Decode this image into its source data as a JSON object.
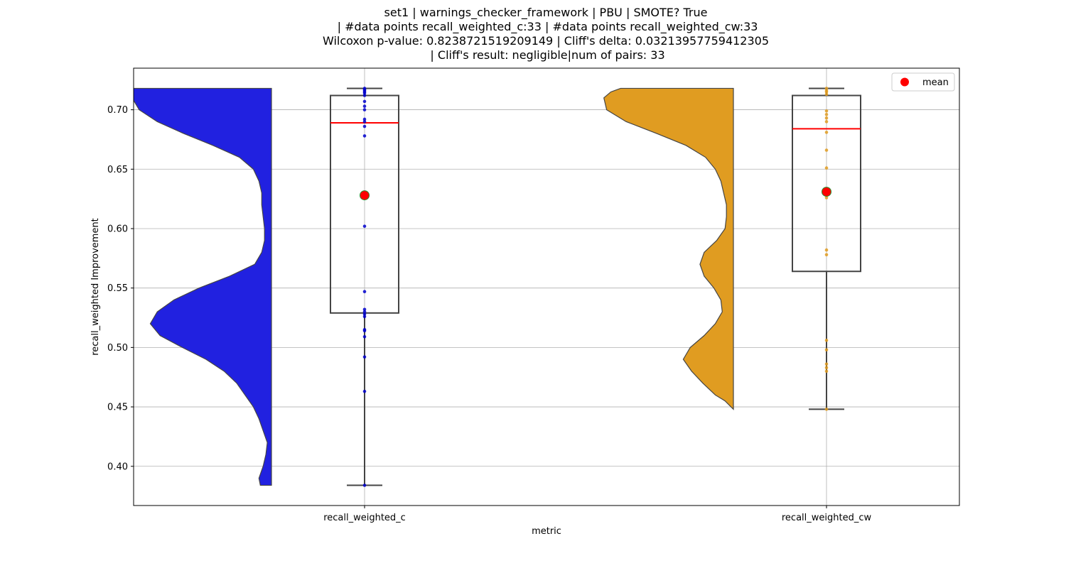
{
  "chart_data": {
    "type": "violin+box",
    "title_lines": [
      "set1 | warnings_checker_framework | PBU | SMOTE? True",
      " | #data points recall_weighted_c:33 | #data points recall_weighted_cw:33",
      "Wilcoxon p-value: 0.8238721519209149 | Cliff's delta: 0.03213957759412305",
      " | Cliff's result: negligible|num of pairs: 33"
    ],
    "xlabel": "metric",
    "ylabel": "recall_weighted Improvement",
    "ylim": [
      0.367,
      0.735
    ],
    "yticks": [
      0.4,
      0.45,
      0.5,
      0.55,
      0.6,
      0.65,
      0.7
    ],
    "ytick_labels": [
      "0.40",
      "0.45",
      "0.50",
      "0.55",
      "0.60",
      "0.65",
      "0.70"
    ],
    "categories": [
      "recall_weighted_c",
      "recall_weighted_cw"
    ],
    "grid": true,
    "legend": {
      "position": "top-right",
      "entries": [
        {
          "label": "mean",
          "color": "#ff0000"
        }
      ]
    },
    "series": [
      {
        "category": "recall_weighted_c",
        "violin_color": "#2121e0",
        "point_color": "#0000cc",
        "violin_side": "left",
        "violin_width": [
          [
            0.384,
            0.08
          ],
          [
            0.39,
            0.09
          ],
          [
            0.4,
            0.06
          ],
          [
            0.41,
            0.04
          ],
          [
            0.42,
            0.03
          ],
          [
            0.43,
            0.06
          ],
          [
            0.44,
            0.09
          ],
          [
            0.45,
            0.13
          ],
          [
            0.46,
            0.19
          ],
          [
            0.47,
            0.25
          ],
          [
            0.48,
            0.34
          ],
          [
            0.49,
            0.47
          ],
          [
            0.5,
            0.64
          ],
          [
            0.51,
            0.8
          ],
          [
            0.52,
            0.87
          ],
          [
            0.53,
            0.82
          ],
          [
            0.54,
            0.7
          ],
          [
            0.55,
            0.52
          ],
          [
            0.56,
            0.3
          ],
          [
            0.57,
            0.12
          ],
          [
            0.58,
            0.07
          ],
          [
            0.59,
            0.05
          ],
          [
            0.6,
            0.05
          ],
          [
            0.61,
            0.06
          ],
          [
            0.62,
            0.07
          ],
          [
            0.63,
            0.07
          ],
          [
            0.64,
            0.09
          ],
          [
            0.65,
            0.13
          ],
          [
            0.66,
            0.23
          ],
          [
            0.67,
            0.42
          ],
          [
            0.68,
            0.63
          ],
          [
            0.69,
            0.82
          ],
          [
            0.7,
            0.95
          ],
          [
            0.71,
            1.0
          ],
          [
            0.718,
            1.0
          ]
        ],
        "box": {
          "whisker_low": 0.384,
          "q1": 0.529,
          "median": 0.689,
          "q3": 0.712,
          "whisker_high": 0.718
        },
        "mean": 0.628,
        "points": [
          0.384,
          0.463,
          0.492,
          0.509,
          0.514,
          0.515,
          0.526,
          0.528,
          0.53,
          0.532,
          0.547,
          0.602,
          0.678,
          0.686,
          0.69,
          0.692,
          0.7,
          0.703,
          0.707,
          0.712,
          0.714,
          0.715,
          0.716,
          0.717,
          0.718
        ]
      },
      {
        "category": "recall_weighted_cw",
        "violin_color": "#e09c21",
        "point_color": "#e09c21",
        "violin_side": "left",
        "violin_width": [
          [
            0.448,
            0.0
          ],
          [
            0.455,
            0.06
          ],
          [
            0.46,
            0.13
          ],
          [
            0.47,
            0.22
          ],
          [
            0.48,
            0.3
          ],
          [
            0.49,
            0.36
          ],
          [
            0.5,
            0.31
          ],
          [
            0.51,
            0.21
          ],
          [
            0.52,
            0.13
          ],
          [
            0.53,
            0.08
          ],
          [
            0.54,
            0.09
          ],
          [
            0.55,
            0.14
          ],
          [
            0.56,
            0.21
          ],
          [
            0.57,
            0.24
          ],
          [
            0.58,
            0.21
          ],
          [
            0.59,
            0.12
          ],
          [
            0.6,
            0.06
          ],
          [
            0.61,
            0.05
          ],
          [
            0.62,
            0.05
          ],
          [
            0.63,
            0.07
          ],
          [
            0.64,
            0.09
          ],
          [
            0.65,
            0.13
          ],
          [
            0.66,
            0.2
          ],
          [
            0.67,
            0.34
          ],
          [
            0.68,
            0.55
          ],
          [
            0.69,
            0.77
          ],
          [
            0.7,
            0.91
          ],
          [
            0.71,
            0.93
          ],
          [
            0.715,
            0.88
          ],
          [
            0.718,
            0.81
          ]
        ],
        "box": {
          "whisker_low": 0.448,
          "q1": 0.564,
          "median": 0.684,
          "q3": 0.712,
          "whisker_high": 0.718
        },
        "mean": 0.631,
        "points": [
          0.448,
          0.48,
          0.483,
          0.486,
          0.498,
          0.506,
          0.578,
          0.582,
          0.626,
          0.63,
          0.651,
          0.666,
          0.681,
          0.69,
          0.693,
          0.696,
          0.699,
          0.713,
          0.715,
          0.716,
          0.718
        ]
      }
    ]
  }
}
